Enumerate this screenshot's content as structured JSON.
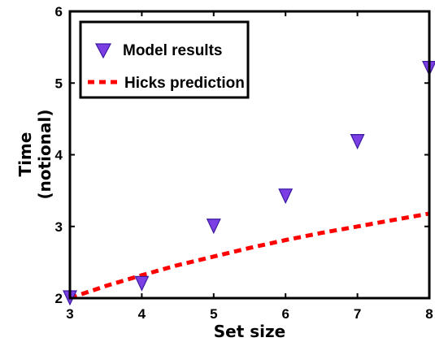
{
  "chart_data": {
    "type": "scatter",
    "title": "",
    "xlabel": "Set size",
    "ylabel_lines": [
      "Time",
      "(notional)"
    ],
    "xlim": [
      3,
      8
    ],
    "ylim": [
      2,
      6
    ],
    "xticks": [
      3,
      4,
      5,
      6,
      7,
      8
    ],
    "yticks": [
      2,
      3,
      4,
      5,
      6
    ],
    "grid": false,
    "legend_position": "top-left",
    "series": [
      {
        "name": "Model results",
        "kind": "marker",
        "marker": "triangle-down",
        "color": "#7b3fe4",
        "x": [
          3,
          4,
          5,
          6,
          7,
          8
        ],
        "y": [
          2.0,
          2.2,
          3.0,
          3.42,
          4.18,
          5.2
        ]
      },
      {
        "name": "Hicks prediction",
        "kind": "line",
        "style": "dashed",
        "color": "#ff0000",
        "x": [
          3,
          3.5,
          4,
          4.5,
          5,
          5.5,
          6,
          6.5,
          7,
          7.5,
          8
        ],
        "y": [
          2.0,
          2.17,
          2.32,
          2.46,
          2.58,
          2.7,
          2.81,
          2.91,
          3.0,
          3.09,
          3.18
        ]
      }
    ]
  }
}
